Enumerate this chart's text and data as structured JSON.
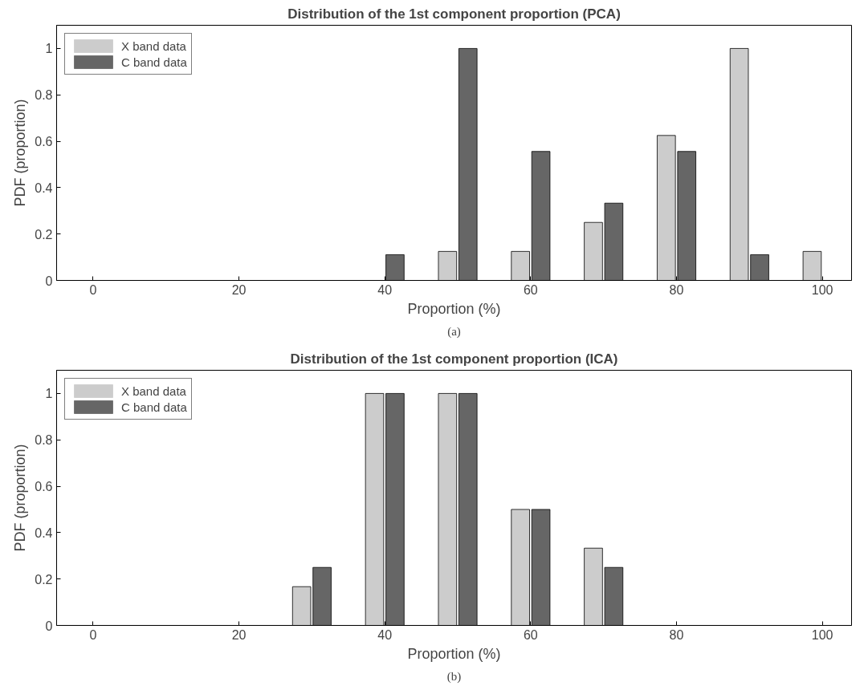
{
  "chart_data": [
    {
      "type": "bar",
      "title": "Distribution of the 1st component proportion (PCA)",
      "xlabel": "Proportion (%)",
      "ylabel": "PDF (proportion)",
      "annotations": [
        "(a)"
      ],
      "x": [
        0,
        10,
        20,
        30,
        40,
        50,
        60,
        70,
        80,
        90,
        100
      ],
      "series": [
        {
          "name": "X band data",
          "color": "#cccccc",
          "values": [
            0,
            0,
            0,
            0,
            0,
            0.125,
            0.125,
            0.25,
            0.625,
            1,
            0.125
          ]
        },
        {
          "name": "C band data",
          "color": "#666666",
          "values": [
            0,
            0,
            0,
            0,
            0.111,
            1,
            0.556,
            0.333,
            0.556,
            0.111,
            0
          ]
        }
      ],
      "xlim": [
        -5,
        104
      ],
      "xticks": [
        0,
        20,
        40,
        60,
        80,
        100
      ],
      "ylim": [
        0,
        1.1
      ],
      "yticks": [
        0,
        0.2,
        0.4,
        0.6,
        0.8,
        1
      ],
      "grid": false,
      "legend": "top left"
    },
    {
      "type": "bar",
      "title": "Distribution of the 1st component proportion (ICA)",
      "xlabel": "Proportion (%)",
      "ylabel": "PDF (proportion)",
      "annotations": [
        "(b)"
      ],
      "x": [
        0,
        10,
        20,
        30,
        40,
        50,
        60,
        70,
        80,
        90,
        100
      ],
      "series": [
        {
          "name": "X band data",
          "color": "#cccccc",
          "values": [
            0,
            0,
            0,
            0.167,
            1,
            1,
            0.5,
            0.333,
            0,
            0,
            0
          ]
        },
        {
          "name": "C band data",
          "color": "#666666",
          "values": [
            0,
            0,
            0,
            0.25,
            1,
            1,
            0.5,
            0.25,
            0,
            0,
            0
          ]
        }
      ],
      "xlim": [
        -5,
        104
      ],
      "xticks": [
        0,
        20,
        40,
        60,
        80,
        100
      ],
      "ylim": [
        0,
        1.1
      ],
      "yticks": [
        0,
        0.2,
        0.4,
        0.6,
        0.8,
        1
      ],
      "grid": false,
      "legend": "top left"
    }
  ]
}
